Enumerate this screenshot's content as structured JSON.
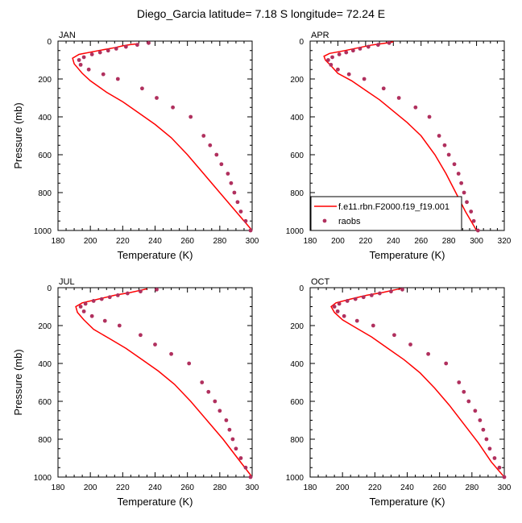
{
  "figure": {
    "title": "Diego_Garcia  latitude= 7.18 S longitude= 72.24 E"
  },
  "colors": {
    "model": "#ff0000",
    "obs": "#b0305e"
  },
  "chart_data": [
    {
      "type": "line",
      "panel": "JAN",
      "xlabel": "Temperature (K)",
      "ylabel": "Pressure (mb)",
      "xlim": [
        180,
        300
      ],
      "ylim": [
        1000,
        0
      ],
      "y_inverted": true,
      "xticks": [
        "180",
        "200",
        "220",
        "240",
        "260",
        "280",
        "300"
      ],
      "yticks": [
        "0",
        "200",
        "400",
        "600",
        "800",
        "1000"
      ],
      "legend": null,
      "series": [
        {
          "name": "f.e11.rbn.F2000.f19_f19.001",
          "kind": "line",
          "x": [
            300,
            290,
            280,
            270,
            260,
            250,
            240,
            230,
            220,
            210,
            200,
            195,
            190,
            189,
            193,
            205,
            215,
            220,
            225,
            230
          ],
          "y": [
            1000,
            900,
            800,
            700,
            600,
            510,
            440,
            380,
            320,
            270,
            210,
            170,
            120,
            90,
            70,
            50,
            35,
            25,
            18,
            14
          ]
        },
        {
          "name": "raobs",
          "kind": "scatter",
          "x": [
            299,
            296,
            293,
            291,
            289,
            287,
            285,
            281,
            278,
            274,
            270,
            262,
            251,
            241,
            232,
            217,
            208,
            199,
            194,
            193,
            196,
            201,
            206,
            211,
            216,
            222,
            229,
            236
          ],
          "y": [
            1000,
            950,
            900,
            850,
            800,
            750,
            700,
            650,
            600,
            550,
            500,
            400,
            350,
            300,
            250,
            200,
            175,
            150,
            125,
            100,
            85,
            70,
            60,
            50,
            40,
            30,
            20,
            10
          ]
        }
      ]
    },
    {
      "type": "line",
      "panel": "APR",
      "xlabel": "Temperature (K)",
      "ylabel": "",
      "xlim": [
        180,
        320
      ],
      "ylim": [
        1000,
        0
      ],
      "y_inverted": true,
      "xticks": [
        "180",
        "200",
        "220",
        "240",
        "260",
        "280",
        "300",
        "320"
      ],
      "yticks": [
        "0",
        "200",
        "400",
        "600",
        "800",
        "1000"
      ],
      "legend": {
        "placement": "bottom-right",
        "entries": [
          "f.e11.rbn.F2000.f19_f19.001",
          "raobs"
        ]
      },
      "series": [
        {
          "name": "f.e11.rbn.F2000.f19_f19.001",
          "kind": "line",
          "x": [
            300,
            292,
            285,
            278,
            270,
            260,
            250,
            240,
            230,
            220,
            210,
            200,
            195,
            191,
            190,
            194,
            205,
            215,
            225,
            235,
            240
          ],
          "y": [
            1000,
            900,
            800,
            700,
            600,
            500,
            430,
            370,
            310,
            260,
            210,
            170,
            130,
            100,
            80,
            65,
            50,
            35,
            20,
            10,
            4
          ]
        },
        {
          "name": "raobs",
          "kind": "scatter",
          "x": [
            301,
            298,
            296,
            293,
            291,
            289,
            287,
            284,
            280,
            277,
            273,
            266,
            256,
            244,
            233,
            219,
            208,
            200,
            195,
            193,
            196,
            201,
            206,
            211,
            216,
            222,
            229,
            237
          ],
          "y": [
            1000,
            950,
            900,
            850,
            800,
            750,
            700,
            650,
            600,
            550,
            500,
            400,
            350,
            300,
            250,
            200,
            175,
            150,
            125,
            100,
            85,
            70,
            60,
            50,
            40,
            30,
            20,
            10
          ]
        }
      ]
    },
    {
      "type": "line",
      "panel": "JUL",
      "xlabel": "Temperature (K)",
      "ylabel": "Pressure (mb)",
      "xlim": [
        180,
        300
      ],
      "ylim": [
        1000,
        0
      ],
      "y_inverted": true,
      "xticks": [
        "180",
        "200",
        "220",
        "240",
        "260",
        "280",
        "300"
      ],
      "yticks": [
        "0",
        "200",
        "400",
        "600",
        "800",
        "1000"
      ],
      "legend": null,
      "series": [
        {
          "name": "f.e11.rbn.F2000.f19_f19.001",
          "kind": "line",
          "x": [
            300,
            291,
            282,
            272,
            262,
            252,
            242,
            232,
            222,
            212,
            202,
            196,
            192,
            191,
            195,
            205,
            215,
            225,
            232,
            235
          ],
          "y": [
            1000,
            900,
            800,
            700,
            600,
            510,
            440,
            380,
            320,
            270,
            220,
            170,
            130,
            100,
            80,
            60,
            40,
            25,
            12,
            6
          ]
        },
        {
          "name": "raobs",
          "kind": "scatter",
          "x": [
            299,
            296,
            293,
            290,
            288,
            286,
            284,
            280,
            277,
            273,
            269,
            261,
            250,
            240,
            231,
            218,
            209,
            201,
            196,
            194,
            197,
            202,
            207,
            212,
            217,
            223,
            231,
            241
          ],
          "y": [
            1000,
            950,
            900,
            850,
            800,
            750,
            700,
            650,
            600,
            550,
            500,
            400,
            350,
            300,
            250,
            200,
            175,
            150,
            125,
            100,
            85,
            70,
            60,
            50,
            40,
            30,
            20,
            10
          ]
        }
      ]
    },
    {
      "type": "line",
      "panel": "OCT",
      "xlabel": "Temperature (K)",
      "ylabel": "",
      "xlim": [
        180,
        300
      ],
      "ylim": [
        1000,
        0
      ],
      "y_inverted": true,
      "xticks": [
        "180",
        "200",
        "220",
        "240",
        "260",
        "280",
        "300"
      ],
      "yticks": [
        "0",
        "200",
        "400",
        "600",
        "800",
        "1000"
      ],
      "legend": null,
      "series": [
        {
          "name": "f.e11.rbn.F2000.f19_f19.001",
          "kind": "line",
          "x": [
            300,
            292,
            284,
            275,
            266,
            257,
            248,
            238,
            228,
            218,
            208,
            200,
            195,
            193,
            196,
            205,
            215,
            225,
            232,
            236
          ],
          "y": [
            1000,
            920,
            820,
            720,
            620,
            530,
            450,
            380,
            320,
            260,
            210,
            170,
            130,
            100,
            80,
            60,
            40,
            25,
            12,
            5
          ]
        },
        {
          "name": "raobs",
          "kind": "scatter",
          "x": [
            300,
            297,
            294,
            291,
            289,
            287,
            285,
            282,
            278,
            275,
            272,
            264,
            253,
            242,
            232,
            219,
            209,
            201,
            197,
            195,
            198,
            203,
            208,
            213,
            218,
            223,
            230,
            237
          ],
          "y": [
            1000,
            950,
            900,
            850,
            800,
            750,
            700,
            650,
            600,
            550,
            500,
            400,
            350,
            300,
            250,
            200,
            175,
            150,
            125,
            100,
            85,
            70,
            60,
            50,
            40,
            30,
            20,
            10
          ]
        }
      ]
    }
  ]
}
